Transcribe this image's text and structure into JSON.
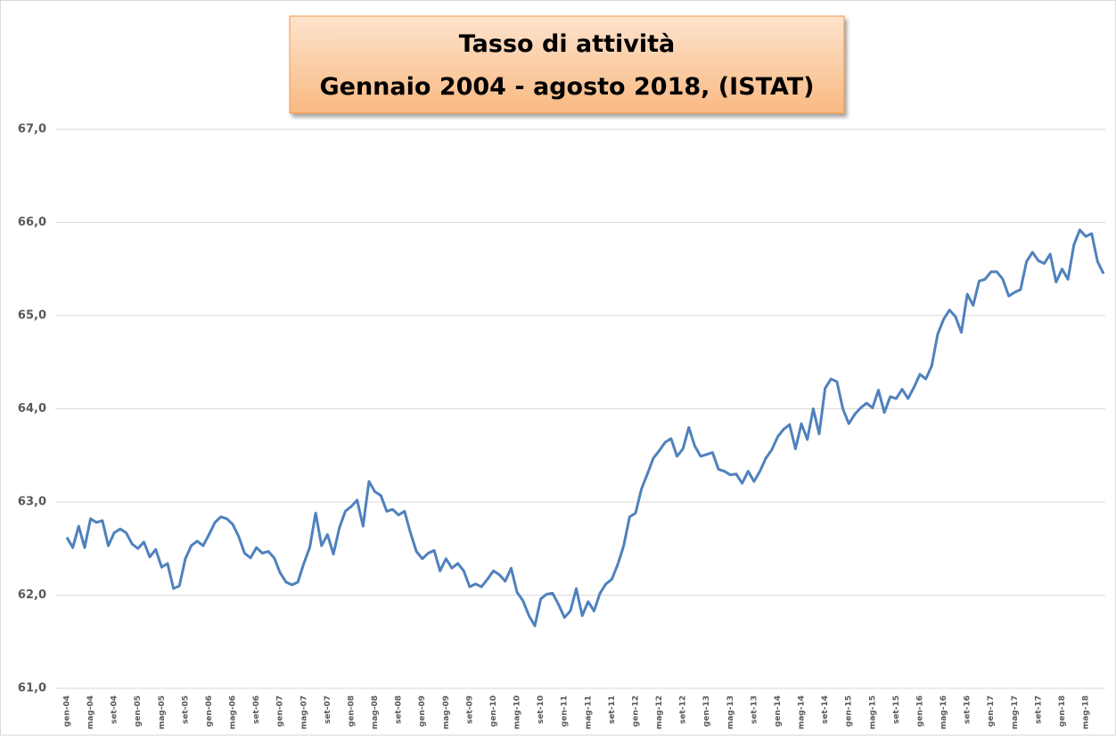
{
  "chart_data": {
    "type": "line",
    "title": [
      "Tasso di attività",
      "Gennaio 2004 - agosto 2018, (ISTAT)"
    ],
    "categories": [
      "gen-04",
      null,
      null,
      null,
      "mag-04",
      null,
      null,
      null,
      "set-04",
      null,
      null,
      null,
      "gen-05",
      null,
      null,
      null,
      "mag-05",
      null,
      null,
      null,
      "set-05",
      null,
      null,
      null,
      "gen-06",
      null,
      null,
      null,
      "mag-06",
      null,
      null,
      null,
      "set-06",
      null,
      null,
      null,
      "gen-07",
      null,
      null,
      null,
      "mag-07",
      null,
      null,
      null,
      "set-07",
      null,
      null,
      null,
      "gen-08",
      null,
      null,
      null,
      "mag-08",
      null,
      null,
      null,
      "set-08",
      null,
      null,
      null,
      "gen-09",
      null,
      null,
      null,
      "mag-09",
      null,
      null,
      null,
      "set-09",
      null,
      null,
      null,
      "gen-10",
      null,
      null,
      null,
      "mag-10",
      null,
      null,
      null,
      "set-10",
      null,
      null,
      null,
      "gen-11",
      null,
      null,
      null,
      "mag-11",
      null,
      null,
      null,
      "set-11",
      null,
      null,
      null,
      "gen-12",
      null,
      null,
      null,
      "mag-12",
      null,
      null,
      null,
      "set-12",
      null,
      null,
      null,
      "gen-13",
      null,
      null,
      null,
      "mag-13",
      null,
      null,
      null,
      "set-13",
      null,
      null,
      null,
      "gen-14",
      null,
      null,
      null,
      "mag-14",
      null,
      null,
      null,
      "set-14",
      null,
      null,
      null,
      "gen-15",
      null,
      null,
      null,
      "mag-15",
      null,
      null,
      null,
      "set-15",
      null,
      null,
      null,
      "gen-16",
      null,
      null,
      null,
      "mag-16",
      null,
      null,
      null,
      "set-16",
      null,
      null,
      null,
      "gen-17",
      null,
      null,
      null,
      "mag-17",
      null,
      null,
      null,
      "set-17",
      null,
      null,
      null,
      "gen-18",
      null,
      null,
      null,
      "mag-18",
      null,
      null,
      null
    ],
    "values": [
      62.62,
      62.51,
      62.74,
      62.51,
      62.82,
      62.78,
      62.8,
      62.53,
      62.67,
      62.71,
      62.67,
      62.55,
      62.5,
      62.57,
      62.41,
      62.49,
      62.3,
      62.34,
      62.07,
      62.1,
      62.39,
      62.53,
      62.58,
      62.53,
      62.65,
      62.78,
      62.84,
      62.82,
      62.76,
      62.63,
      62.45,
      62.4,
      62.51,
      62.45,
      62.47,
      62.4,
      62.24,
      62.14,
      62.11,
      62.14,
      62.34,
      62.51,
      62.88,
      62.53,
      62.65,
      62.44,
      62.72,
      62.9,
      62.95,
      63.02,
      62.74,
      63.22,
      63.11,
      63.07,
      62.9,
      62.92,
      62.86,
      62.9,
      62.67,
      62.47,
      62.39,
      62.45,
      62.48,
      62.26,
      62.39,
      62.29,
      62.34,
      62.26,
      62.09,
      62.12,
      62.09,
      62.17,
      62.26,
      62.22,
      62.15,
      62.29,
      62.03,
      61.94,
      61.78,
      61.67,
      61.96,
      62.01,
      62.02,
      61.9,
      61.76,
      61.83,
      62.07,
      61.78,
      61.93,
      61.83,
      62.02,
      62.12,
      62.17,
      62.33,
      62.53,
      62.84,
      62.88,
      63.14,
      63.3,
      63.47,
      63.55,
      63.64,
      63.68,
      63.49,
      63.57,
      63.8,
      63.6,
      63.49,
      63.51,
      63.53,
      63.35,
      63.33,
      63.29,
      63.3,
      63.2,
      63.33,
      63.22,
      63.33,
      63.47,
      63.56,
      63.7,
      63.78,
      63.83,
      63.57,
      63.84,
      63.67,
      64.0,
      63.73,
      64.22,
      64.32,
      64.29,
      64.0,
      63.84,
      63.94,
      64.01,
      64.06,
      64.01,
      64.2,
      63.96,
      64.13,
      64.11,
      64.21,
      64.11,
      64.23,
      64.37,
      64.32,
      64.46,
      64.8,
      64.96,
      65.06,
      64.99,
      64.82,
      65.23,
      65.11,
      65.37,
      65.39,
      65.47,
      65.47,
      65.39,
      65.21,
      65.25,
      65.28,
      65.58,
      65.68,
      65.59,
      65.56,
      65.66,
      65.36,
      65.5,
      65.39,
      65.76,
      65.92,
      65.85,
      65.88,
      65.58,
      65.45
    ],
    "color": "#4f81bd",
    "ylim": [
      61,
      67
    ],
    "yticks": [
      {
        "value": 61,
        "label": "61,0"
      },
      {
        "value": 62,
        "label": "62,0"
      },
      {
        "value": 63,
        "label": "63,0"
      },
      {
        "value": 64,
        "label": "64,0"
      },
      {
        "value": 65,
        "label": "65,0"
      },
      {
        "value": 66,
        "label": "66,0"
      },
      {
        "value": 67,
        "label": "67,0"
      }
    ],
    "grid": true
  }
}
